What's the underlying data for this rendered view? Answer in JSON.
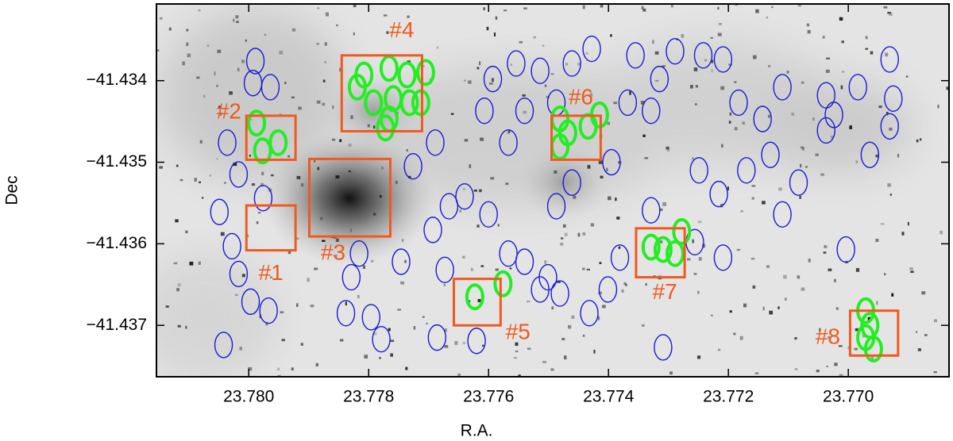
{
  "chart_data": {
    "type": "scatter",
    "xlabel": "R.A.",
    "ylabel": "Dec",
    "xlim": [
      23.78154,
      23.76832
    ],
    "ylim": [
      -41.43763,
      -41.43306
    ],
    "xticks": [
      {
        "value": 23.78,
        "label": "23.780"
      },
      {
        "value": 23.778,
        "label": "23.778"
      },
      {
        "value": 23.776,
        "label": "23.776"
      },
      {
        "value": 23.774,
        "label": "23.774"
      },
      {
        "value": 23.772,
        "label": "23.772"
      },
      {
        "value": 23.77,
        "label": "23.770"
      }
    ],
    "yticks": [
      {
        "value": -41.434,
        "label": "−41.434"
      },
      {
        "value": -41.435,
        "label": "−41.435"
      },
      {
        "value": -41.436,
        "label": "−41.436"
      },
      {
        "value": -41.437,
        "label": "−41.437"
      }
    ],
    "series": [
      {
        "color": "#1a1ad6",
        "x": [
          23.77989,
          23.77993,
          23.77964,
          23.78036,
          23.78017,
          23.77976,
          23.78049,
          23.78028,
          23.78017,
          23.77997,
          23.77967,
          23.78042,
          23.77829,
          23.77838,
          23.77796,
          23.77779,
          23.77816,
          23.77746,
          23.77726,
          23.77689,
          23.77666,
          23.77693,
          23.77673,
          23.7764,
          23.776,
          23.77567,
          23.7754,
          23.77501,
          23.77481,
          23.77432,
          23.77401,
          23.77607,
          23.77593,
          23.77554,
          23.77514,
          23.77461,
          23.77428,
          23.77355,
          23.77315,
          23.77289,
          23.77368,
          23.77329,
          23.77242,
          23.77209,
          23.77183,
          23.77143,
          23.7711,
          23.77037,
          23.77024,
          23.76984,
          23.76931,
          23.76925,
          23.76931,
          23.76964,
          23.77037,
          23.7713,
          23.77249,
          23.7717,
          23.77083,
          23.7711,
          23.77216,
          23.77256,
          23.77209,
          23.77381,
          23.77329,
          23.77395,
          23.77461,
          23.77487,
          23.77004,
          23.77309,
          23.7762,
          23.77686,
          23.77514,
          23.77567,
          23.7754,
          23.77487
        ],
        "y": [
          -41.43376,
          -41.43403,
          -41.43408,
          -41.43476,
          -41.43515,
          -41.43544,
          -41.43561,
          -41.43603,
          -41.43637,
          -41.43671,
          -41.43682,
          -41.43724,
          -41.43641,
          -41.43685,
          -41.4369,
          -41.43717,
          -41.43612,
          -41.43622,
          -41.43505,
          -41.43476,
          -41.43554,
          -41.43583,
          -41.43632,
          -41.43542,
          -41.43564,
          -41.43612,
          -41.43622,
          -41.43641,
          -41.43661,
          -41.43685,
          -41.43656,
          -41.43437,
          -41.43398,
          -41.43379,
          -41.43388,
          -41.43379,
          -41.43361,
          -41.43369,
          -41.43398,
          -41.43364,
          -41.43427,
          -41.43437,
          -41.43369,
          -41.43374,
          -41.43427,
          -41.43447,
          -41.43408,
          -41.43418,
          -41.43442,
          -41.43408,
          -41.43374,
          -41.43422,
          -41.43456,
          -41.43491,
          -41.43461,
          -41.43491,
          -41.4351,
          -41.4351,
          -41.43525,
          -41.43564,
          -41.43539,
          -41.43598,
          -41.43617,
          -41.43617,
          -41.43559,
          -41.435,
          -41.43525,
          -41.43554,
          -41.43607,
          -41.43727,
          -41.43719,
          -41.43715,
          -41.43656,
          -41.43476,
          -41.43437,
          -41.43427
        ]
      },
      {
        "color": "#22ee22",
        "x": [
          23.77808,
          23.77766,
          23.77736,
          23.77705,
          23.77819,
          23.77792,
          23.77759,
          23.77732,
          23.77713,
          23.77766,
          23.77772,
          23.77987,
          23.77951,
          23.77977,
          23.77481,
          23.77468,
          23.77434,
          23.77415,
          23.77481,
          23.77329,
          23.77309,
          23.77289,
          23.77278,
          23.77623,
          23.77576,
          23.76971,
          23.76964,
          23.76971,
          23.76958
        ],
        "y": [
          -41.43393,
          -41.43385,
          -41.43393,
          -41.4339,
          -41.43408,
          -41.43427,
          -41.43422,
          -41.43427,
          -41.43427,
          -41.43447,
          -41.43458,
          -41.43452,
          -41.43476,
          -41.43486,
          -41.43447,
          -41.43464,
          -41.43456,
          -41.43442,
          -41.43481,
          -41.43604,
          -41.43607,
          -41.43612,
          -41.43585,
          -41.43665,
          -41.43649,
          -41.43682,
          -41.437,
          -41.43715,
          -41.43729
        ]
      }
    ],
    "regions_color": "#f05a1e",
    "regions": [
      {
        "label": "#1",
        "ra": [
          23.78004,
          23.77922
        ],
        "dec": [
          -41.43553,
          -41.43608
        ]
      },
      {
        "label": "#2",
        "ra": [
          23.78004,
          23.77922
        ],
        "dec": [
          -41.43443,
          -41.43497
        ]
      },
      {
        "label": "#3",
        "ra": [
          23.77899,
          23.77764
        ],
        "dec": [
          -41.43496,
          -41.43591
        ]
      },
      {
        "label": "#4",
        "ra": [
          23.77845,
          23.77711
        ],
        "dec": [
          -41.43369,
          -41.43462
        ]
      },
      {
        "label": "#5",
        "ra": [
          23.77658,
          23.7758
        ],
        "dec": [
          -41.43643,
          -41.437
        ]
      },
      {
        "label": "#6",
        "ra": [
          23.77495,
          23.77413
        ],
        "dec": [
          -41.43443,
          -41.43497
        ]
      },
      {
        "label": "#7",
        "ra": [
          23.77354,
          23.77273
        ],
        "dec": [
          -41.43581,
          -41.43641
        ]
      },
      {
        "label": "#8",
        "ra": [
          23.76997,
          23.76917
        ],
        "dec": [
          -41.43682,
          -41.43737
        ]
      }
    ]
  }
}
